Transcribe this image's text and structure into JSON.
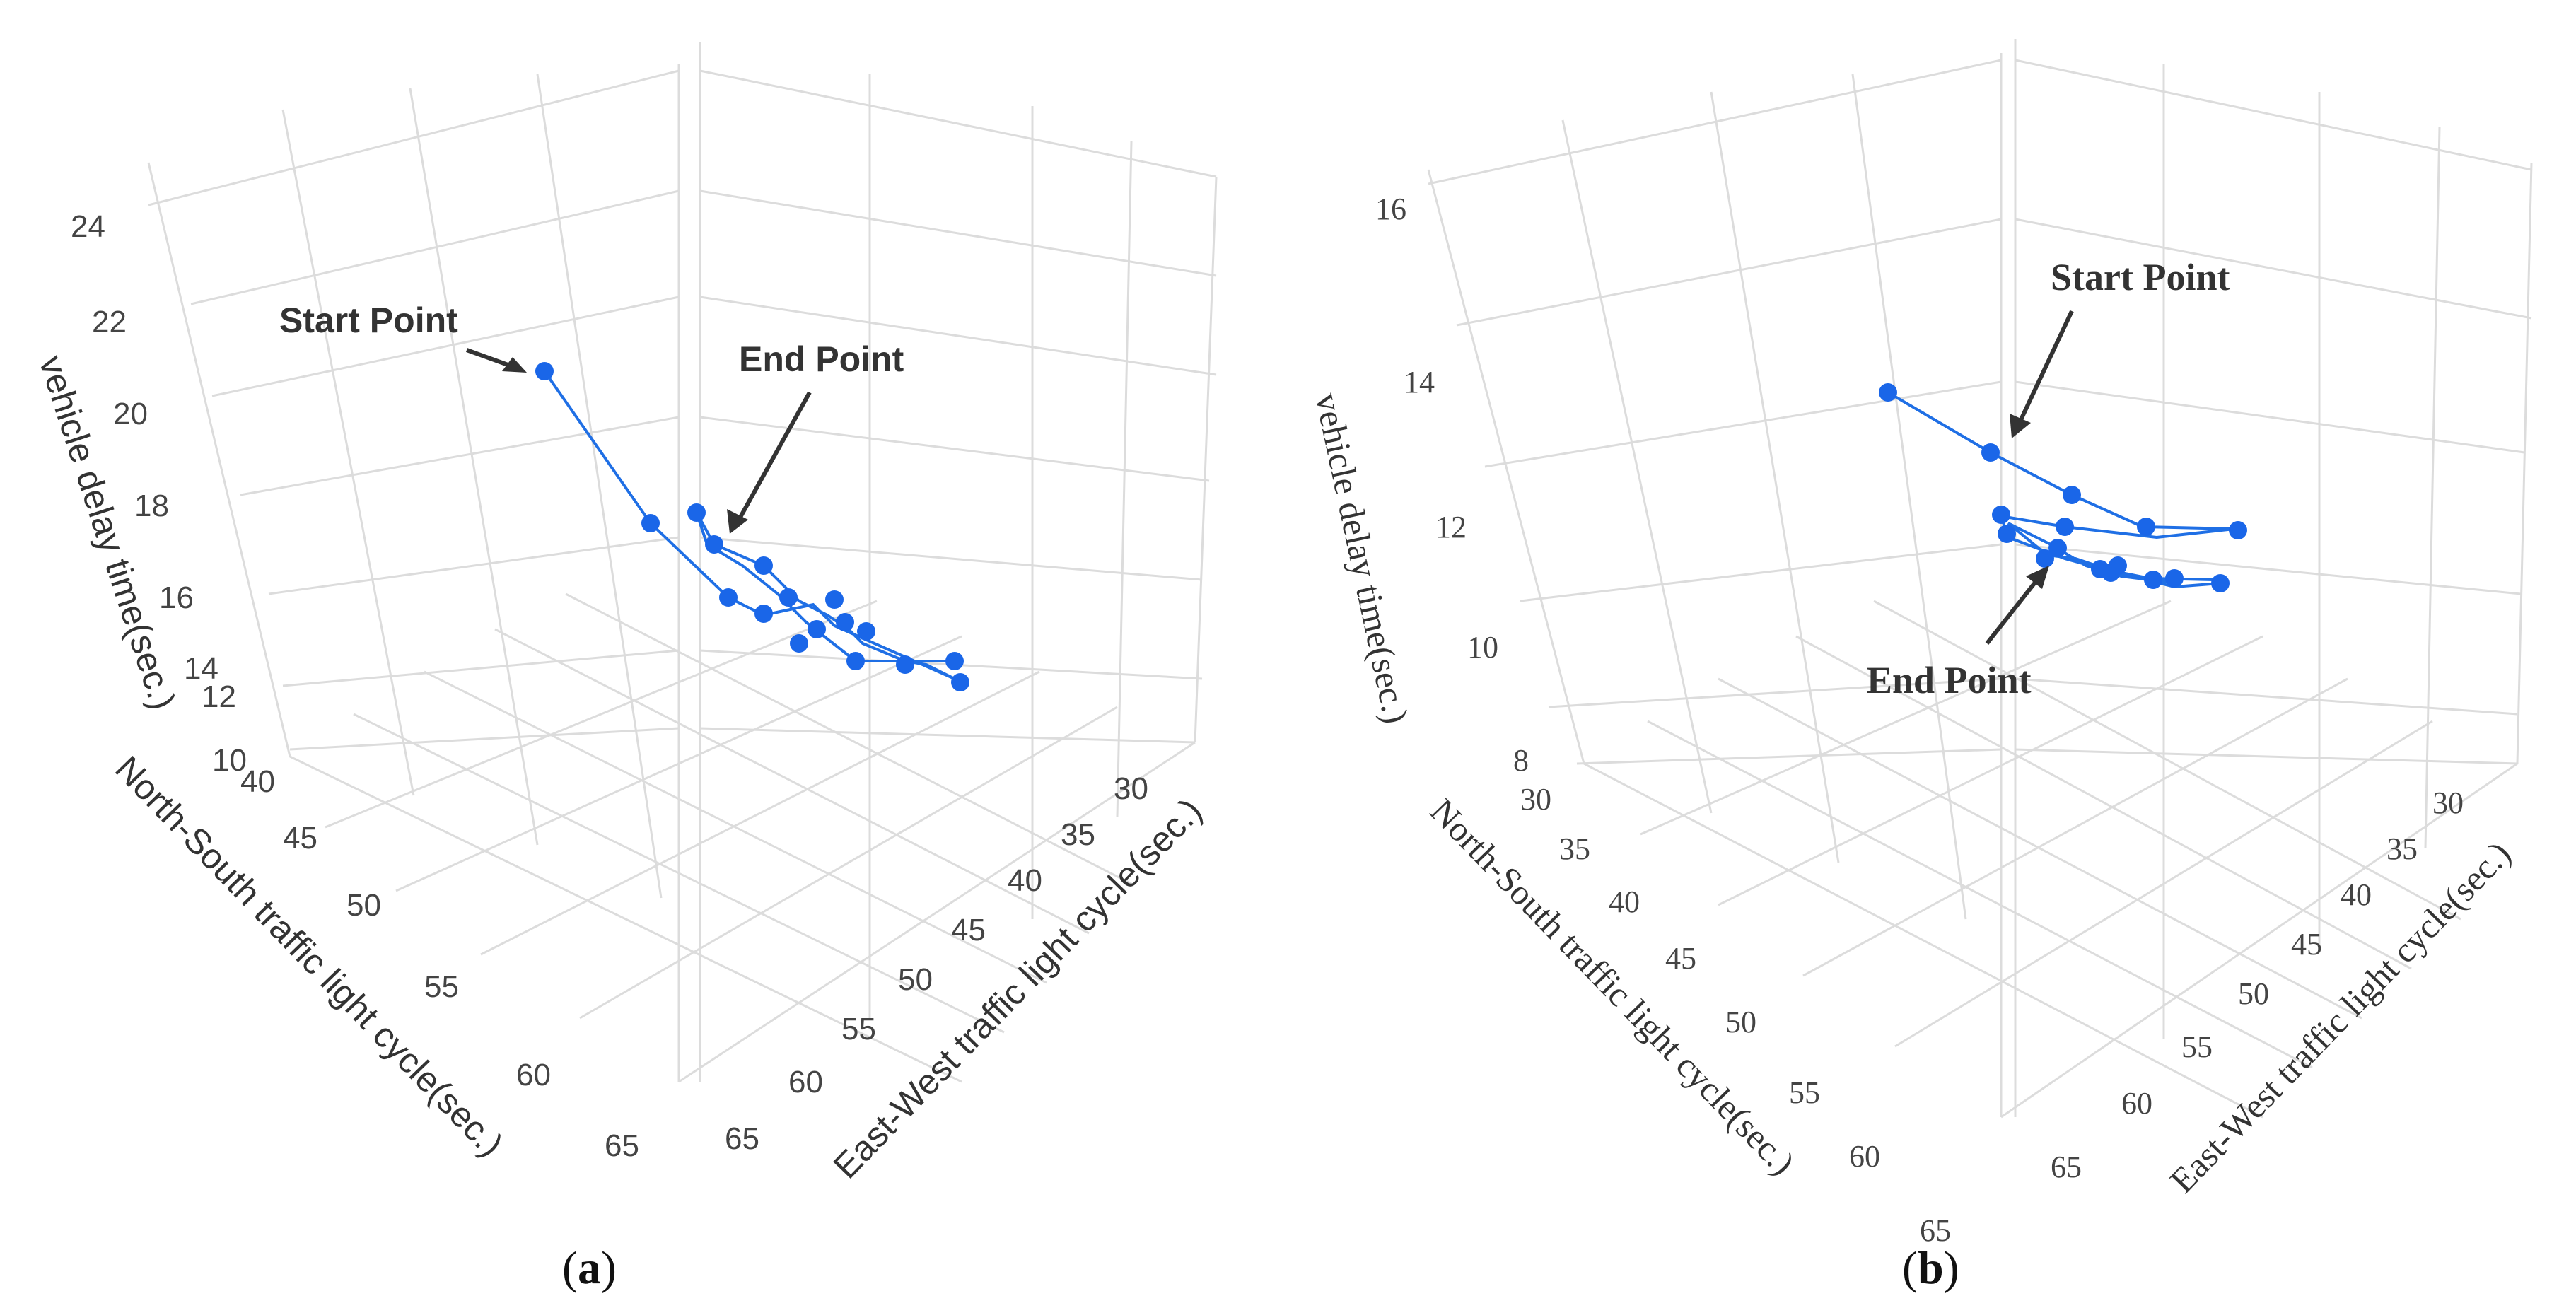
{
  "chart_data": [
    {
      "type": "scatter3d",
      "panel": "(a)",
      "panel_letter": "a",
      "zlabel": "vehicle delay time(sec.)",
      "ylabel_ns": "North-South traffic light cycle(sec.)",
      "xlabel_ew": "East-West traffic light cycle(sec.)",
      "z_ticks": [
        "24",
        "22",
        "20",
        "18",
        "16",
        "14",
        "12",
        "10"
      ],
      "ns_ticks": [
        "40",
        "45",
        "50",
        "55",
        "60",
        "65"
      ],
      "ew_ticks": [
        "30",
        "35",
        "40",
        "45",
        "50",
        "55",
        "60",
        "65"
      ],
      "annotations": {
        "start": "Start Point",
        "end": "End Point"
      },
      "points_order": "path from Start Point to End Point",
      "points_count": 17
    },
    {
      "type": "scatter3d",
      "panel": "(b)",
      "panel_letter": "b",
      "zlabel": "vehicle delay time(sec.)",
      "ylabel_ns": "North-South traffic light cycle(sec.)",
      "xlabel_ew": "East-West traffic light cycle(sec.)",
      "z_ticks": [
        "16",
        "14",
        "12",
        "10",
        "8"
      ],
      "ns_ticks": [
        "30",
        "35",
        "40",
        "45",
        "50",
        "55",
        "60",
        "65"
      ],
      "ew_ticks": [
        "30",
        "35",
        "40",
        "45",
        "50",
        "55",
        "60",
        "65"
      ],
      "annotations": {
        "start": "Start Point",
        "end": "End Point"
      },
      "points_order": "path from Start Point to End Point",
      "points_count": 16
    }
  ],
  "colors": {
    "series": "#1a66e8",
    "grid": "#dcdcdc"
  }
}
